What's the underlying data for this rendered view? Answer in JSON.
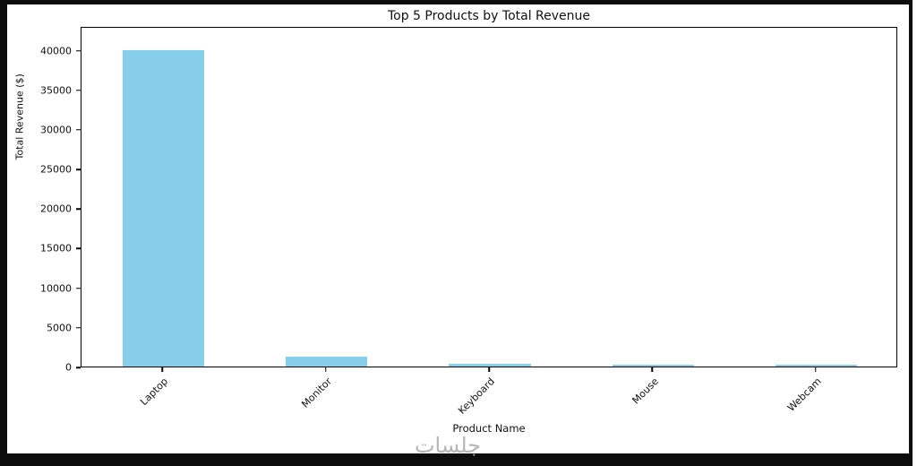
{
  "chart_data": {
    "type": "bar",
    "title": "Top 5 Products by Total Revenue",
    "xlabel": "Product Name",
    "ylabel": "Total Revenue ($)",
    "categories": [
      "Laptop",
      "Monitor",
      "Keyboard",
      "Mouse",
      "Webcam"
    ],
    "values": [
      40000,
      1300,
      300,
      250,
      250
    ],
    "ylim": [
      0,
      43000
    ],
    "yticks": [
      0,
      5000,
      10000,
      15000,
      20000,
      25000,
      30000,
      35000,
      40000
    ],
    "bar_color": "#87CEEB",
    "bar_width_fraction": 0.5,
    "grid": false,
    "legend": null,
    "xtick_rotation": 45
  },
  "watermark": {
    "text": "جلسات"
  }
}
